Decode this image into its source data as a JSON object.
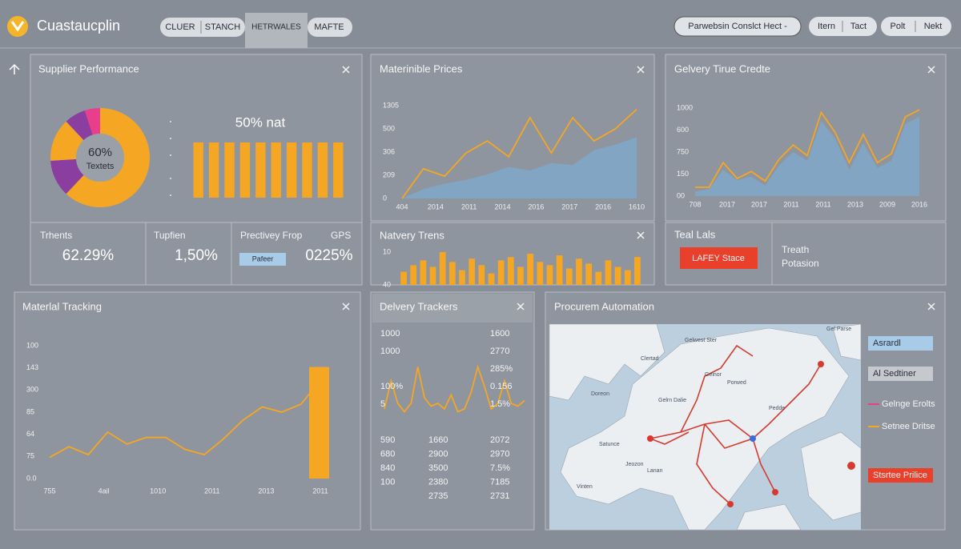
{
  "header": {
    "brand": "Cuastaucplin",
    "tabs": [
      "CLUER",
      "STANCH",
      "HETRWALES",
      "MAFTE"
    ],
    "search": "Parwebsin Conslct Hect -",
    "buttons": [
      "Itern",
      "Tact",
      "Polt",
      "Nekt"
    ]
  },
  "supplier": {
    "title": "Supplier Performance",
    "donut": {
      "type": "pie",
      "values": [
        62,
        12,
        14,
        7,
        5
      ],
      "colors": [
        "#f5a623",
        "#8a3fa0",
        "#f5a623",
        "#8a3fa0",
        "#e83e8c"
      ]
    },
    "center_value": "60%",
    "center_label": "Textets",
    "bar_label": "50% nat",
    "bars": {
      "type": "bar",
      "values": [
        100,
        100,
        100,
        100,
        100,
        100,
        100,
        100,
        100,
        100
      ],
      "ylim": [
        0,
        100
      ],
      "color": "#f5a623"
    },
    "stats": [
      {
        "label": "Trhents",
        "value": "62.29%"
      },
      {
        "label": "Tupfien",
        "value": "1,50%"
      },
      {
        "label": "Prectivey Frop",
        "value": "0225%"
      }
    ],
    "extra": "GPS",
    "button": "Pafeer"
  },
  "prices": {
    "title": "Materinible Prices",
    "chart": {
      "type": "line",
      "ylim": [
        0,
        100
      ],
      "series": [
        {
          "color": "#7fa8c9",
          "fill": true,
          "values": [
            0,
            10,
            16,
            20,
            26,
            34,
            30,
            38,
            36,
            52,
            58,
            66
          ]
        },
        {
          "color": "#f5a623",
          "fill": false,
          "values": [
            0,
            32,
            24,
            49,
            62,
            45,
            87,
            49,
            87,
            62,
            75,
            96
          ]
        }
      ],
      "y_labels": [
        "1305",
        "500",
        "306",
        "209",
        "0"
      ],
      "x_labels": [
        "404",
        "2014",
        "2011",
        "2014",
        "2016",
        "2017",
        "2016",
        "1610"
      ]
    }
  },
  "trends": {
    "title": "Natvery Trens",
    "chart": {
      "type": "bar",
      "ylim": [
        0,
        100
      ],
      "color": "#f5a623",
      "values": [
        40,
        60,
        75,
        55,
        100,
        70,
        45,
        80,
        60,
        35,
        75,
        85,
        55,
        95,
        70,
        60,
        90,
        50,
        80,
        65,
        40,
        75,
        55,
        45,
        85
      ],
      "y_labels": [
        "10",
        "40"
      ]
    }
  },
  "delivery_credit": {
    "title": "Gelvery Tirue Credte",
    "chart": {
      "type": "line",
      "ylim": [
        0,
        100
      ],
      "series": [
        {
          "color": "#7fa8c9",
          "fill": true,
          "values": [
            5,
            8,
            30,
            18,
            22,
            12,
            35,
            50,
            40,
            85,
            65,
            30,
            60,
            32,
            40,
            82,
            90
          ]
        },
        {
          "color": "#f5a623",
          "fill": false,
          "values": [
            10,
            10,
            38,
            20,
            28,
            17,
            42,
            58,
            46,
            95,
            72,
            38,
            70,
            38,
            48,
            90,
            98
          ]
        }
      ],
      "y_labels": [
        "1000",
        "600",
        "750",
        "150",
        "00"
      ],
      "x_labels": [
        "708",
        "2017",
        "2017",
        "2011",
        "2011",
        "2013",
        "2009",
        "2016"
      ]
    }
  },
  "teal": {
    "title": "Teal Lals",
    "button": "LAFEY Stace",
    "lines": [
      "Treath",
      "Potasion"
    ]
  },
  "tracking": {
    "title": "Materlal Tracking",
    "chart": {
      "type": "line",
      "ylim": [
        0,
        100
      ],
      "series": [
        {
          "color": "#f5a623",
          "fill": false,
          "values": [
            16,
            24,
            18,
            35,
            26,
            31,
            31,
            22,
            18,
            30,
            44,
            54,
            50,
            56,
            74
          ]
        }
      ],
      "highlight": {
        "value": 84,
        "color": "#f5a623"
      },
      "y_labels": [
        "100",
        "143",
        "300",
        "85",
        "64",
        "75",
        "0.0"
      ],
      "x_labels": [
        "755",
        "4ail",
        "1010",
        "2011",
        "2013",
        "2011"
      ]
    }
  },
  "trackers": {
    "title": "Delvery Trackers",
    "top": [
      [
        "1000",
        "1600"
      ],
      [
        "1000",
        "2770"
      ],
      [
        "",
        "285%"
      ],
      [
        "100%",
        "0.156"
      ],
      [
        "5",
        "1.5%"
      ]
    ],
    "wave": {
      "type": "line",
      "ylim": [
        0,
        100
      ],
      "series": [
        {
          "color": "#f5a623",
          "fill": false,
          "values": [
            20,
            70,
            30,
            15,
            30,
            95,
            40,
            25,
            30,
            20,
            45,
            15,
            20,
            50,
            95,
            60,
            20,
            30,
            70,
            30,
            25,
            35
          ]
        }
      ]
    },
    "bottom": [
      [
        "590",
        "1660",
        "2072"
      ],
      [
        "680",
        "2900",
        "2970"
      ],
      [
        "840",
        "3500",
        "7.5%"
      ],
      [
        "100",
        "2380",
        "7185"
      ],
      [
        "",
        "2735",
        "2731"
      ]
    ]
  },
  "automation": {
    "title": "Procurem Automation",
    "map_labels": [
      "Gelwest Ster",
      "Clertad",
      "Gelnor",
      "Doreon",
      "Gelrn Dalie",
      "Porwed",
      "Satunce",
      "Lanan",
      "Jeozon",
      "Pedde",
      "Vinten",
      "Gel Parse"
    ],
    "legend": {
      "button1": "Asrardl",
      "button2": "Al Sedtiner",
      "line1": "Gelnge Erolts",
      "line2": "Setnee Dritse",
      "button3": "Stsrtee Prilice"
    }
  }
}
